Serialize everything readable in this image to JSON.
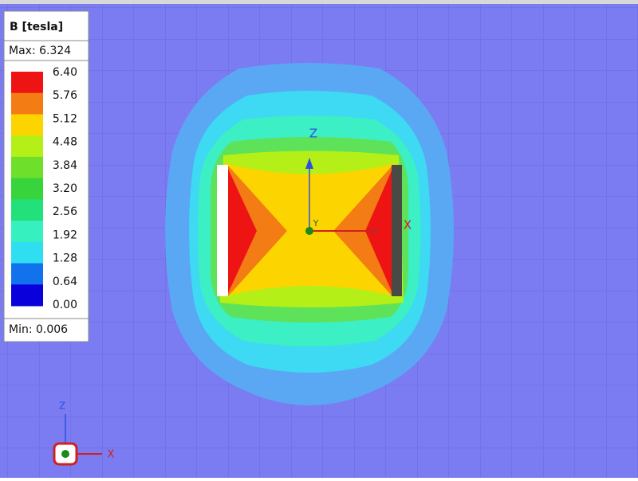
{
  "legend": {
    "title": "B [tesla]",
    "max_label": "Max: 6.324",
    "min_label": "Min: 0.006",
    "levels": [
      {
        "label": "6.40",
        "color": "#ee1414"
      },
      {
        "label": "5.76",
        "color": "#f37c14"
      },
      {
        "label": "5.12",
        "color": "#fcd400"
      },
      {
        "label": "4.48",
        "color": "#b4f018"
      },
      {
        "label": "3.84",
        "color": "#6ee02c"
      },
      {
        "label": "3.20",
        "color": "#38d43c"
      },
      {
        "label": "2.56",
        "color": "#22e07a"
      },
      {
        "label": "1.92",
        "color": "#36f0c0"
      },
      {
        "label": "1.28",
        "color": "#30def2"
      },
      {
        "label": "0.64",
        "color": "#1272ee"
      },
      {
        "label": "0.00",
        "color": "#0a00dc"
      }
    ]
  },
  "axes": {
    "z": "Z",
    "y": "Y",
    "x": "X"
  },
  "triad": {
    "z": "Z",
    "x": "X"
  }
}
